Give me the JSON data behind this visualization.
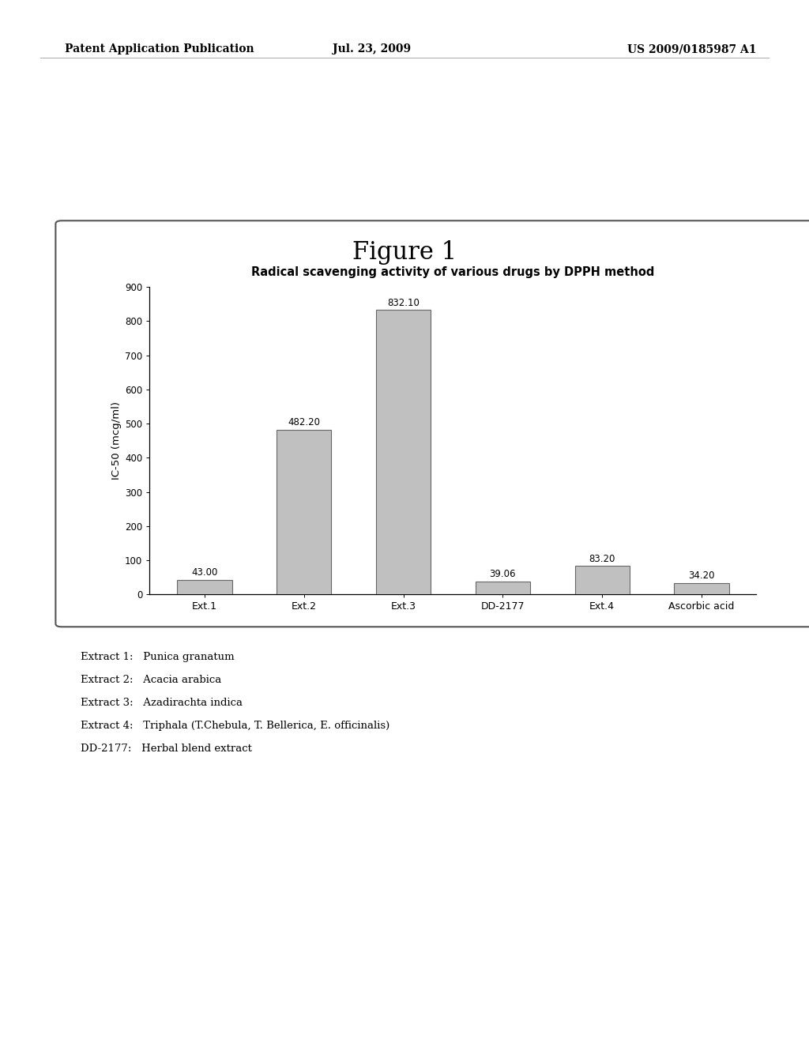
{
  "title": "Radical scavenging activity of various drugs by DPPH method",
  "categories": [
    "Ext.1",
    "Ext.2",
    "Ext.3",
    "DD-2177",
    "Ext.4",
    "Ascorbic acid"
  ],
  "values": [
    43.0,
    482.2,
    832.1,
    39.06,
    83.2,
    34.2
  ],
  "bar_color": "#c0c0c0",
  "bar_edge_color": "#666666",
  "ylabel": "IC-50 (mcg/ml)",
  "ylim": [
    0,
    900
  ],
  "yticks": [
    0,
    100,
    200,
    300,
    400,
    500,
    600,
    700,
    800,
    900
  ],
  "figure_title": "Figure 1",
  "header_left": "Patent Application Publication",
  "header_center": "Jul. 23, 2009",
  "header_right": "US 2009/0185987 A1",
  "annotations": [
    "43.00",
    "482.20",
    "832.10",
    "39.06",
    "83.20",
    "34.20"
  ],
  "legend_lines": [
    "Extract 1:   Punica granatum",
    "Extract 2:   Acacia arabica",
    "Extract 3:   Azadirachta indica",
    "Extract 4:   Triphala (T.Chebula, T. Bellerica, E. officinalis)",
    "DD-2177:   Herbal blend extract"
  ],
  "background_color": "#ffffff",
  "chart_bg_color": "#ffffff"
}
